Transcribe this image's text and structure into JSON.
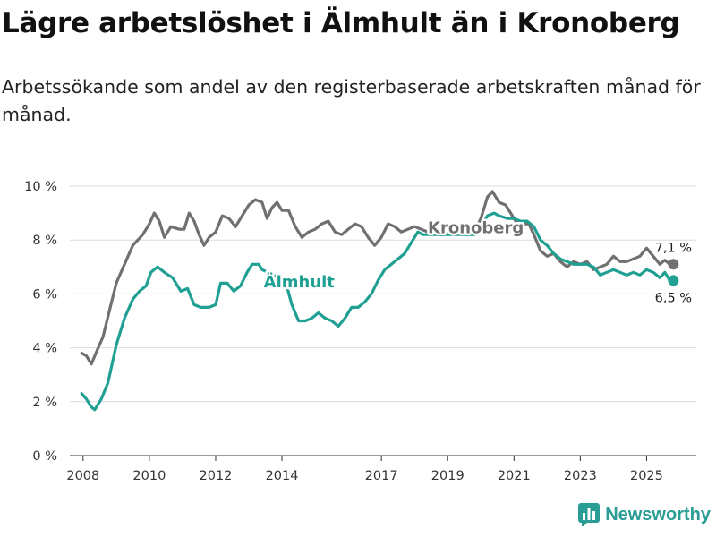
{
  "title": "Lägre arbetslöshet i Älmhult än i Kronoberg",
  "subtitle": "Arbetssökande som andel av den registerbaserade arbetskraften månad för månad.",
  "brand": {
    "name": "Newsworthy",
    "icon": "bar-chart-logo-icon",
    "color": "#2a9d94"
  },
  "chart_data": {
    "type": "line",
    "title": "Lägre arbetslöshet i Älmhult än i Kronoberg",
    "xlabel": "",
    "ylabel": "",
    "xlim": [
      2007.6,
      2026.5
    ],
    "ylim": [
      0,
      10
    ],
    "yticks": [
      {
        "value": 0,
        "label": "0 %"
      },
      {
        "value": 2,
        "label": "2 %"
      },
      {
        "value": 4,
        "label": "4 %"
      },
      {
        "value": 6,
        "label": "6 %"
      },
      {
        "value": 8,
        "label": "8 %"
      },
      {
        "value": 10,
        "label": "10 %"
      }
    ],
    "xticks": [
      {
        "value": 2008,
        "label": "2008"
      },
      {
        "value": 2010,
        "label": "2010"
      },
      {
        "value": 2012,
        "label": "2012"
      },
      {
        "value": 2014,
        "label": "2014"
      },
      {
        "value": 2017,
        "label": "2017"
      },
      {
        "value": 2019,
        "label": "2019"
      },
      {
        "value": 2021,
        "label": "2021"
      },
      {
        "value": 2023,
        "label": "2023"
      },
      {
        "value": 2025,
        "label": "2025"
      }
    ],
    "grid": true,
    "series": [
      {
        "name": "Kronoberg",
        "color": "#707070",
        "end_label": "7,1 %",
        "points": [
          [
            2007.96,
            3.8
          ],
          [
            2008.1,
            3.7
          ],
          [
            2008.25,
            3.4
          ],
          [
            2008.42,
            3.9
          ],
          [
            2008.6,
            4.4
          ],
          [
            2008.8,
            5.4
          ],
          [
            2009.0,
            6.4
          ],
          [
            2009.25,
            7.1
          ],
          [
            2009.5,
            7.8
          ],
          [
            2009.8,
            8.2
          ],
          [
            2010.0,
            8.6
          ],
          [
            2010.15,
            9.0
          ],
          [
            2010.3,
            8.7
          ],
          [
            2010.45,
            8.1
          ],
          [
            2010.65,
            8.5
          ],
          [
            2010.9,
            8.4
          ],
          [
            2011.05,
            8.4
          ],
          [
            2011.2,
            9.0
          ],
          [
            2011.35,
            8.7
          ],
          [
            2011.5,
            8.2
          ],
          [
            2011.65,
            7.8
          ],
          [
            2011.8,
            8.1
          ],
          [
            2012.0,
            8.3
          ],
          [
            2012.2,
            8.9
          ],
          [
            2012.4,
            8.8
          ],
          [
            2012.6,
            8.5
          ],
          [
            2012.8,
            8.9
          ],
          [
            2013.0,
            9.3
          ],
          [
            2013.2,
            9.5
          ],
          [
            2013.4,
            9.4
          ],
          [
            2013.55,
            8.8
          ],
          [
            2013.7,
            9.2
          ],
          [
            2013.85,
            9.4
          ],
          [
            2014.0,
            9.1
          ],
          [
            2014.2,
            9.1
          ],
          [
            2014.4,
            8.5
          ],
          [
            2014.6,
            8.1
          ],
          [
            2014.8,
            8.3
          ],
          [
            2015.0,
            8.4
          ],
          [
            2015.2,
            8.6
          ],
          [
            2015.4,
            8.7
          ],
          [
            2015.6,
            8.3
          ],
          [
            2015.8,
            8.2
          ],
          [
            2016.0,
            8.4
          ],
          [
            2016.2,
            8.6
          ],
          [
            2016.4,
            8.5
          ],
          [
            2016.6,
            8.1
          ],
          [
            2016.8,
            7.8
          ],
          [
            2017.0,
            8.1
          ],
          [
            2017.2,
            8.6
          ],
          [
            2017.4,
            8.5
          ],
          [
            2017.6,
            8.3
          ],
          [
            2017.8,
            8.4
          ],
          [
            2018.0,
            8.5
          ],
          [
            2018.2,
            8.4
          ],
          [
            2018.4,
            8.3
          ],
          [
            2019.8,
            8.3
          ],
          [
            2020.0,
            8.8
          ],
          [
            2020.2,
            9.6
          ],
          [
            2020.35,
            9.8
          ],
          [
            2020.55,
            9.4
          ],
          [
            2020.75,
            9.3
          ],
          [
            2020.9,
            9.0
          ],
          [
            2021.05,
            8.7
          ],
          [
            2021.25,
            8.6
          ],
          [
            2021.45,
            8.6
          ],
          [
            2021.6,
            8.2
          ],
          [
            2021.8,
            7.6
          ],
          [
            2022.0,
            7.4
          ],
          [
            2022.2,
            7.5
          ],
          [
            2022.4,
            7.2
          ],
          [
            2022.6,
            7.0
          ],
          [
            2022.8,
            7.2
          ],
          [
            2023.0,
            7.1
          ],
          [
            2023.2,
            7.2
          ],
          [
            2023.4,
            6.9
          ],
          [
            2023.6,
            7.0
          ],
          [
            2023.8,
            7.1
          ],
          [
            2024.0,
            7.4
          ],
          [
            2024.2,
            7.2
          ],
          [
            2024.4,
            7.2
          ],
          [
            2024.6,
            7.3
          ],
          [
            2024.8,
            7.4
          ],
          [
            2025.0,
            7.7
          ],
          [
            2025.2,
            7.4
          ],
          [
            2025.4,
            7.1
          ],
          [
            2025.55,
            7.25
          ],
          [
            2025.7,
            7.1
          ]
        ]
      },
      {
        "name": "Älmhult",
        "color": "#20a093",
        "end_label": "6,5 %",
        "points": [
          [
            2007.96,
            2.3
          ],
          [
            2008.1,
            2.1
          ],
          [
            2008.25,
            1.8
          ],
          [
            2008.35,
            1.7
          ],
          [
            2008.55,
            2.1
          ],
          [
            2008.75,
            2.7
          ],
          [
            2009.0,
            4.1
          ],
          [
            2009.25,
            5.1
          ],
          [
            2009.5,
            5.8
          ],
          [
            2009.7,
            6.1
          ],
          [
            2009.9,
            6.3
          ],
          [
            2010.05,
            6.8
          ],
          [
            2010.25,
            7.0
          ],
          [
            2010.45,
            6.8
          ],
          [
            2010.7,
            6.6
          ],
          [
            2010.95,
            6.1
          ],
          [
            2011.15,
            6.2
          ],
          [
            2011.35,
            5.6
          ],
          [
            2011.55,
            5.5
          ],
          [
            2011.8,
            5.5
          ],
          [
            2012.0,
            5.6
          ],
          [
            2012.15,
            6.4
          ],
          [
            2012.35,
            6.4
          ],
          [
            2012.55,
            6.1
          ],
          [
            2012.75,
            6.3
          ],
          [
            2012.95,
            6.8
          ],
          [
            2013.1,
            7.1
          ],
          [
            2013.3,
            7.1
          ],
          [
            2013.4,
            6.9
          ],
          [
            2014.1,
            6.5
          ],
          [
            2014.3,
            5.6
          ],
          [
            2014.5,
            5.0
          ],
          [
            2014.7,
            5.0
          ],
          [
            2014.9,
            5.1
          ],
          [
            2015.1,
            5.3
          ],
          [
            2015.3,
            5.1
          ],
          [
            2015.5,
            5.0
          ],
          [
            2015.7,
            4.8
          ],
          [
            2015.9,
            5.1
          ],
          [
            2016.1,
            5.5
          ],
          [
            2016.3,
            5.5
          ],
          [
            2016.5,
            5.7
          ],
          [
            2016.7,
            6.0
          ],
          [
            2016.9,
            6.5
          ],
          [
            2017.1,
            6.9
          ],
          [
            2017.3,
            7.1
          ],
          [
            2017.5,
            7.3
          ],
          [
            2017.7,
            7.5
          ],
          [
            2017.9,
            7.9
          ],
          [
            2018.1,
            8.3
          ],
          [
            2018.25,
            8.2
          ],
          [
            2019.8,
            8.2
          ],
          [
            2020.0,
            8.5
          ],
          [
            2020.2,
            8.9
          ],
          [
            2020.4,
            9.0
          ],
          [
            2020.55,
            8.9
          ],
          [
            2020.8,
            8.8
          ],
          [
            2021.0,
            8.8
          ],
          [
            2021.2,
            8.7
          ],
          [
            2021.4,
            8.7
          ],
          [
            2021.6,
            8.5
          ],
          [
            2021.8,
            8.0
          ],
          [
            2022.0,
            7.8
          ],
          [
            2022.2,
            7.5
          ],
          [
            2022.4,
            7.3
          ],
          [
            2022.6,
            7.2
          ],
          [
            2022.8,
            7.1
          ],
          [
            2023.0,
            7.1
          ],
          [
            2023.2,
            7.1
          ],
          [
            2023.4,
            7.0
          ],
          [
            2023.6,
            6.7
          ],
          [
            2023.8,
            6.8
          ],
          [
            2024.0,
            6.9
          ],
          [
            2024.2,
            6.8
          ],
          [
            2024.4,
            6.7
          ],
          [
            2024.6,
            6.8
          ],
          [
            2024.8,
            6.7
          ],
          [
            2025.0,
            6.9
          ],
          [
            2025.2,
            6.8
          ],
          [
            2025.4,
            6.6
          ],
          [
            2025.55,
            6.8
          ],
          [
            2025.7,
            6.5
          ]
        ]
      }
    ],
    "annotations": [
      {
        "text": "Kronoberg",
        "series": "Kronoberg",
        "x": 2018.4,
        "y": 8.25
      },
      {
        "text": "Älmhult",
        "series": "Älmhult",
        "x": 2013.45,
        "y": 6.25
      }
    ]
  }
}
